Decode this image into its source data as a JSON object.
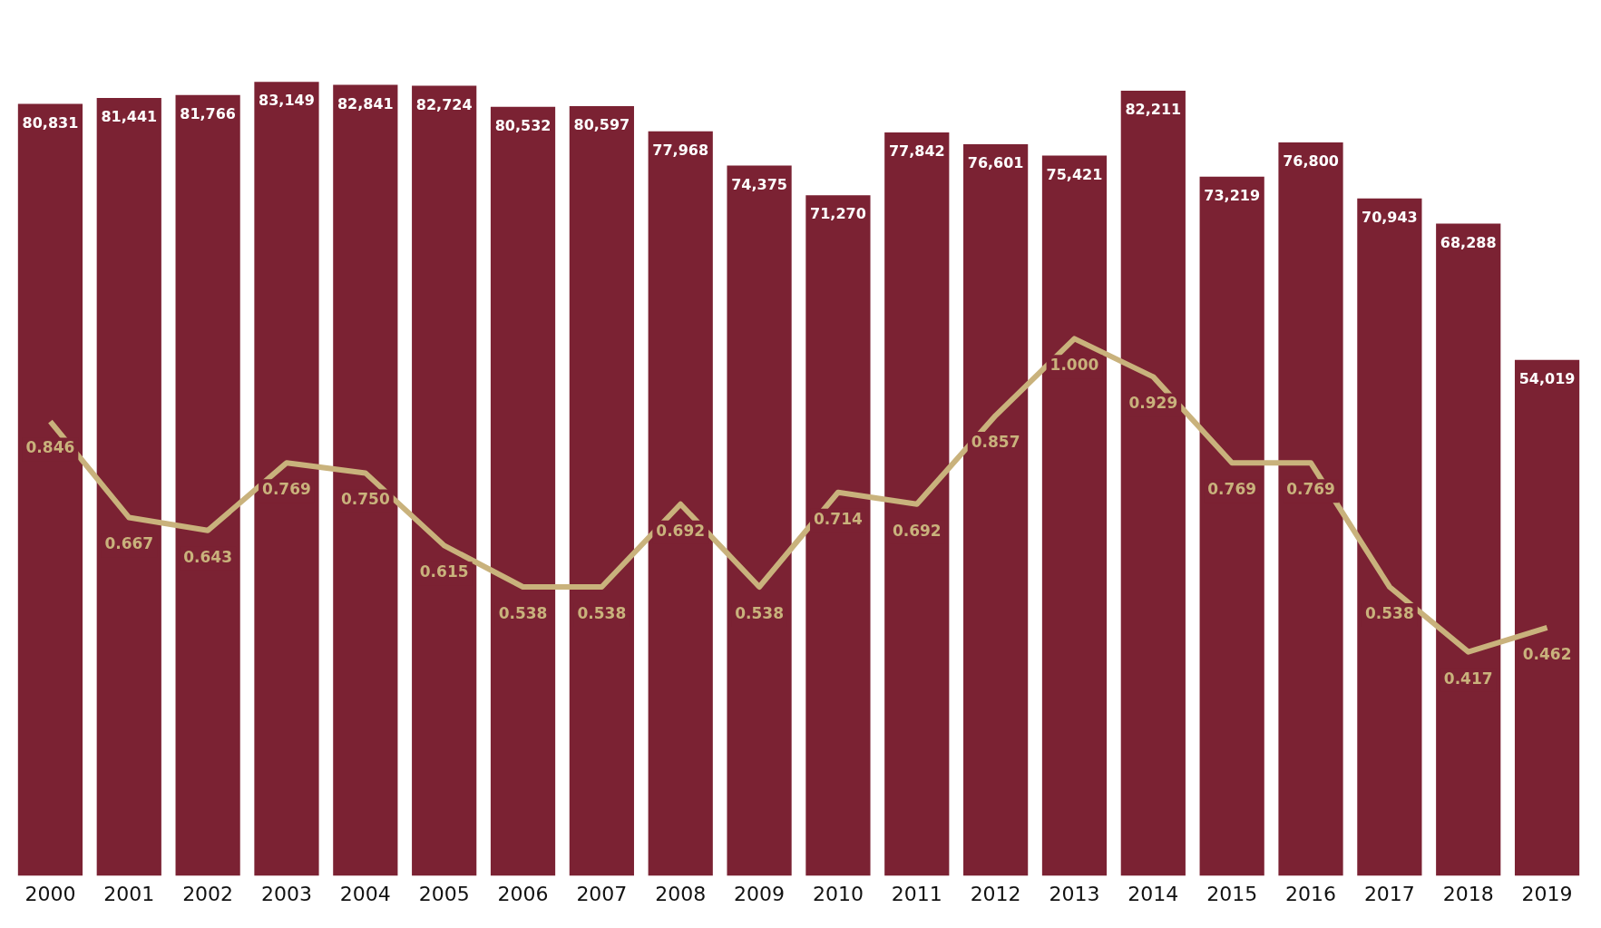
{
  "chart_data": {
    "type": "bar",
    "categories": [
      "2000",
      "2001",
      "2002",
      "2003",
      "2004",
      "2005",
      "2006",
      "2007",
      "2008",
      "2009",
      "2010",
      "2011",
      "2012",
      "2013",
      "2014",
      "2015",
      "2016",
      "2017",
      "2018",
      "2019"
    ],
    "series": [
      {
        "color": "#7b2233",
        "values": [
          80831,
          81441,
          81766,
          83149,
          82841,
          82724,
          80532,
          80597,
          77968,
          74375,
          71270,
          77842,
          76601,
          75421,
          82211,
          73219,
          76800,
          70943,
          68288,
          54019
        ],
        "value_labels": [
          "80,831",
          "81,441",
          "81,766",
          "83,149",
          "82,841",
          "82,724",
          "80,532",
          "80,597",
          "77,968",
          "74,375",
          "71,270",
          "77,842",
          "76,601",
          "75,421",
          "82,211",
          "73,219",
          "76,800",
          "70,943",
          "68,288",
          "54,019"
        ]
      },
      {
        "type": "line",
        "color": "#c9b27c",
        "axis": "y2",
        "values": [
          0.846,
          0.667,
          0.643,
          0.769,
          0.75,
          0.615,
          0.538,
          0.538,
          0.692,
          0.538,
          0.714,
          0.692,
          0.857,
          1.0,
          0.929,
          0.769,
          0.769,
          0.538,
          0.417,
          0.462
        ],
        "value_labels": [
          "0.846",
          "0.667",
          "0.643",
          "0.769",
          "0.750",
          "0.615",
          "0.538",
          "0.538",
          "0.692",
          "0.538",
          "0.714",
          "0.692",
          "0.857",
          "1.000",
          "0.929",
          "0.769",
          "0.769",
          "0.538",
          "0.417",
          "0.462"
        ]
      }
    ]
  }
}
